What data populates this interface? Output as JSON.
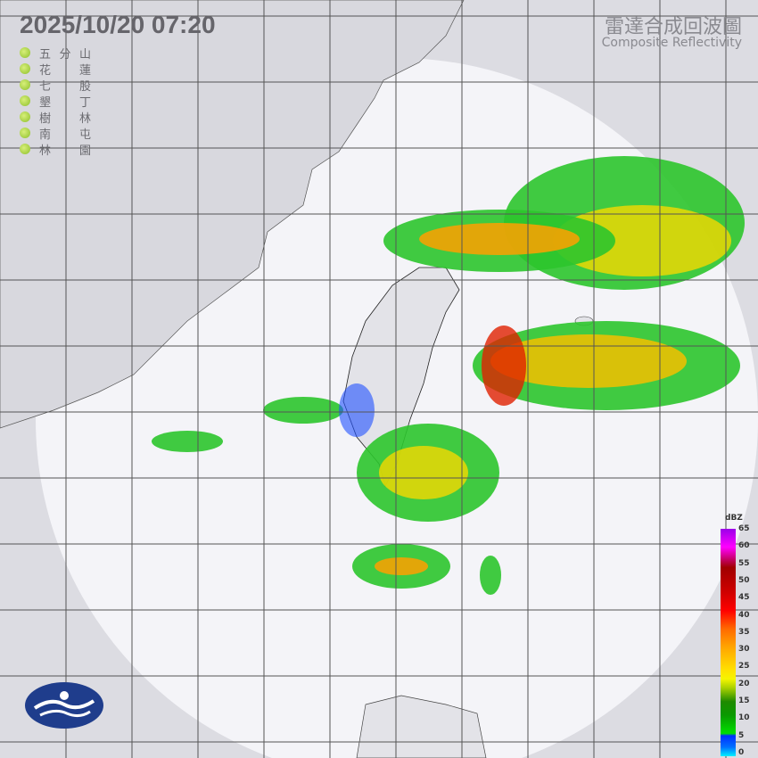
{
  "header": {
    "timestamp": "2025/10/20  07:20",
    "title_zh": "雷達合成回波圖",
    "title_en": "Composite Reflectivity"
  },
  "stations": [
    {
      "a": "五",
      "b": "分",
      "c": "山"
    },
    {
      "a": "花",
      "b": "",
      "c": "蓮"
    },
    {
      "a": "七",
      "b": "",
      "c": "股"
    },
    {
      "a": "墾",
      "b": "",
      "c": "丁"
    },
    {
      "a": "樹",
      "b": "",
      "c": "林"
    },
    {
      "a": "南",
      "b": "",
      "c": "屯"
    },
    {
      "a": "林",
      "b": "",
      "c": "園"
    }
  ],
  "legend": {
    "unit": "dBZ",
    "ticks": [
      "65",
      "60",
      "55",
      "50",
      "45",
      "40",
      "35",
      "30",
      "25",
      "20",
      "15",
      "10",
      "5",
      "0"
    ]
  },
  "colors": {
    "station_dot": "#a6d23a",
    "background": "#dcdce2",
    "coverage": "#f4f4f8",
    "land": "#e6e6ea"
  },
  "logo": "cwa-logo"
}
